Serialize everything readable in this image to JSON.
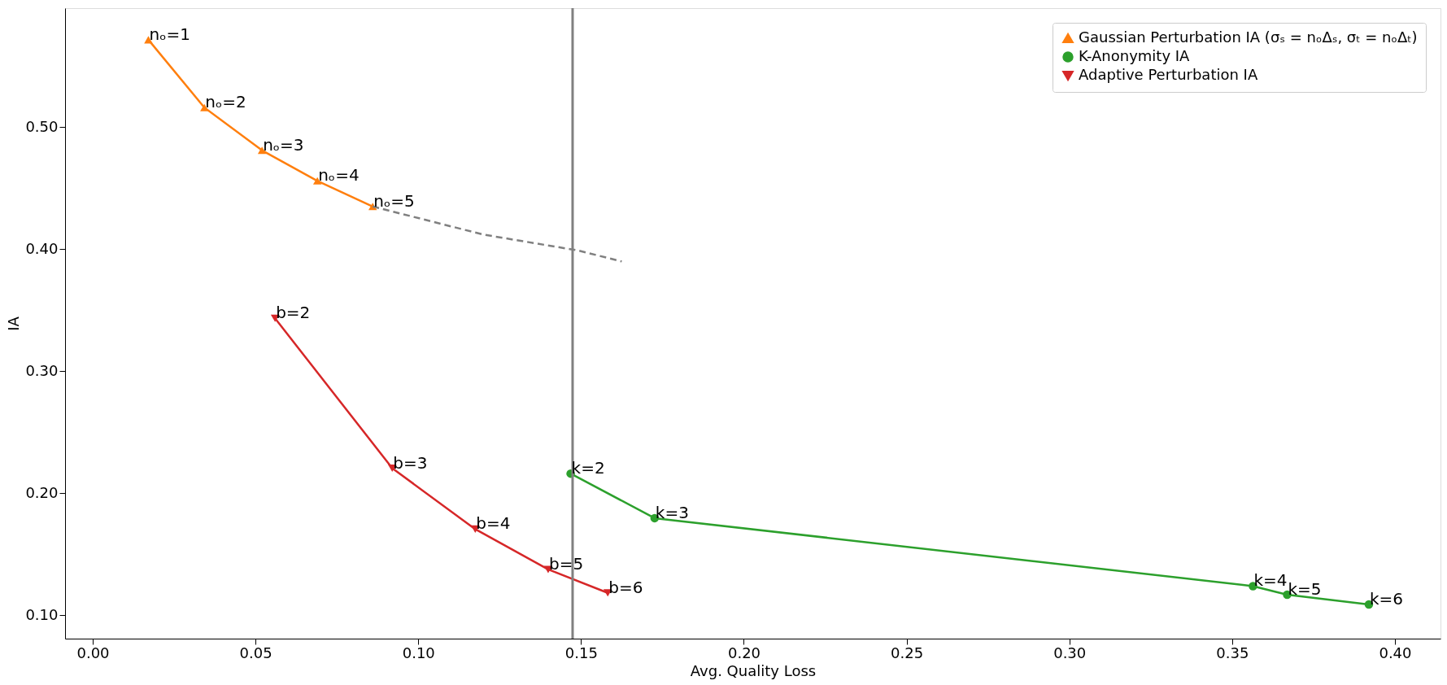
{
  "chart_data": {
    "type": "line",
    "xlabel": "Avg. Quality Loss",
    "ylabel": "IA",
    "xlim": [
      -0.0085,
      0.414
    ],
    "ylim": [
      0.081,
      0.5975
    ],
    "xticks": [
      {
        "value": 0,
        "label": "0.00"
      },
      0.05,
      {
        "value": 0.1,
        "label": "0.10"
      },
      0.15,
      {
        "value": 0.2,
        "label": "0.20"
      },
      0.25,
      {
        "value": 0.3,
        "label": "0.30"
      },
      0.35,
      {
        "value": 0.4,
        "label": "0.40"
      }
    ],
    "yticks": [
      {
        "value": 0.1,
        "label": "0.10"
      },
      {
        "value": 0.2,
        "label": "0.20"
      },
      {
        "value": 0.3,
        "label": "0.30"
      },
      {
        "value": 0.4,
        "label": "0.40"
      },
      {
        "value": 0.5,
        "label": "0.50"
      }
    ],
    "grid": false,
    "legend": "top right",
    "series": [
      {
        "name": "Gaussian Perturbation IA (σₛ = nₒΔₛ, σₜ = nₒΔₜ)",
        "color": "#ff7f0e",
        "marker": "triangle",
        "x": [
          0.0171,
          0.0343,
          0.052,
          0.069,
          0.086
        ],
        "values": [
          0.5716,
          0.516,
          0.481,
          0.456,
          0.435
        ]
      },
      {
        "name": "K-Anonymity IA",
        "color": "#2ca02c",
        "marker": "circle",
        "x": [
          0.1468,
          0.1726,
          0.3564,
          0.3669,
          0.392
        ],
        "values": [
          0.2162,
          0.1797,
          0.124,
          0.117,
          0.109
        ]
      },
      {
        "name": "Adaptive Perturbation IA",
        "color": "#d62728",
        "marker": "triangle-down",
        "x": [
          0.056,
          0.092,
          0.1175,
          0.1399,
          0.1582
        ],
        "values": [
          0.3434,
          0.2206,
          0.1707,
          0.1377,
          0.1185
        ]
      },
      {
        "color": "#808080",
        "marker": "none",
        "line_style": "dashed",
        "x": [
          0.086,
          0.12,
          0.149,
          0.1625
        ],
        "values": [
          0.435,
          0.412,
          0.399,
          0.39
        ]
      }
    ],
    "ref_lines": [
      {
        "axis": "x",
        "value": 0.1474,
        "color": "#808080"
      }
    ],
    "annotations": [
      {
        "text": "nₒ=1",
        "x": 0.0171,
        "y": 0.5716
      },
      {
        "text": "nₒ=2",
        "x": 0.0343,
        "y": 0.516
      },
      {
        "text": "nₒ=3",
        "x": 0.052,
        "y": 0.481
      },
      {
        "text": "nₒ=4",
        "x": 0.069,
        "y": 0.456
      },
      {
        "text": "nₒ=5",
        "x": 0.086,
        "y": 0.435
      },
      {
        "text": "k=2",
        "x": 0.1468,
        "y": 0.2162
      },
      {
        "text": "k=3",
        "x": 0.1726,
        "y": 0.1797
      },
      {
        "text": "k=4",
        "x": 0.3564,
        "y": 0.124
      },
      {
        "text": "k=5",
        "x": 0.3669,
        "y": 0.117
      },
      {
        "text": "k=6",
        "x": 0.392,
        "y": 0.109
      },
      {
        "text": "b=2",
        "x": 0.056,
        "y": 0.3434
      },
      {
        "text": "b=3",
        "x": 0.092,
        "y": 0.2206
      },
      {
        "text": "b=4",
        "x": 0.1175,
        "y": 0.1707
      },
      {
        "text": "b=5",
        "x": 0.1399,
        "y": 0.1377
      },
      {
        "text": "b=6",
        "x": 0.1582,
        "y": 0.1185
      }
    ]
  }
}
